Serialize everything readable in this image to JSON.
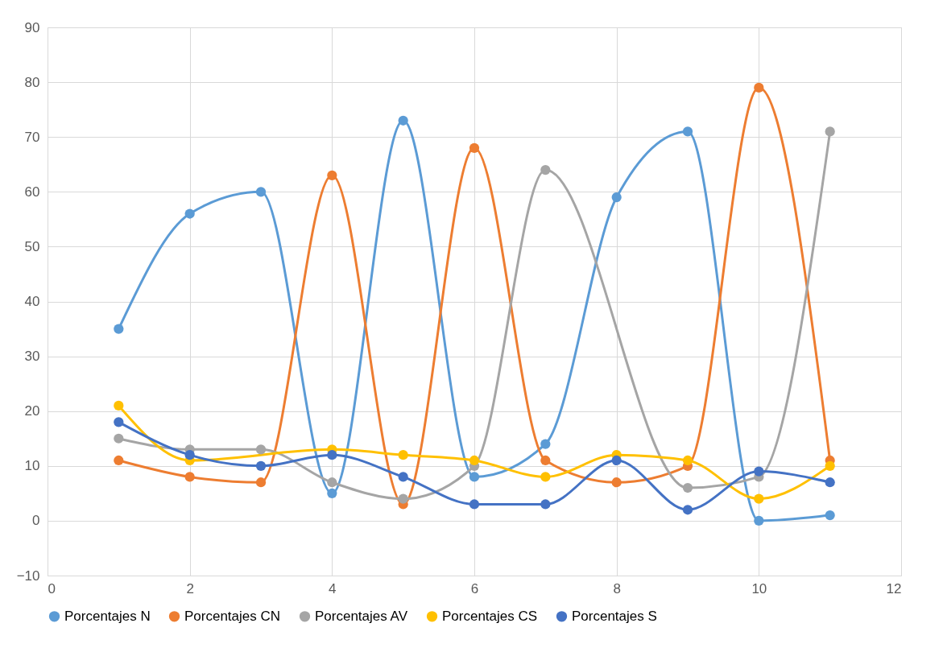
{
  "chart_data": {
    "type": "line",
    "x": [
      1,
      2,
      3,
      4,
      5,
      6,
      7,
      8,
      9,
      10,
      11
    ],
    "series": [
      {
        "name": "Porcentajes N",
        "color": "#5b9bd5",
        "values": [
          35,
          56,
          60,
          5,
          73,
          8,
          14,
          59,
          71,
          0,
          1
        ]
      },
      {
        "name": "Porcentajes CN",
        "color": "#ed7d31",
        "values": [
          11,
          8,
          7,
          63,
          3,
          68,
          11,
          7,
          10,
          79,
          11
        ]
      },
      {
        "name": "Porcentajes AV",
        "color": "#a5a5a5",
        "values": [
          15,
          13,
          13,
          7,
          4,
          10,
          64,
          null,
          6,
          8,
          71
        ]
      },
      {
        "name": "Porcentajes CS",
        "color": "#ffc000",
        "values": [
          21,
          11,
          null,
          13,
          12,
          11,
          8,
          12,
          11,
          4,
          10
        ]
      },
      {
        "name": "Porcentajes S",
        "color": "#4472c4",
        "values": [
          18,
          12,
          10,
          12,
          8,
          3,
          3,
          11,
          2,
          9,
          7
        ]
      }
    ],
    "xlim": [
      0,
      12
    ],
    "xticks": [
      0,
      2,
      4,
      6,
      8,
      10,
      12
    ],
    "ylim": [
      -10,
      90
    ],
    "yticks": [
      -10,
      0,
      10,
      20,
      30,
      40,
      50,
      60,
      70,
      80,
      90
    ],
    "grid": true,
    "legend": "bottom",
    "marker": "circle",
    "line_style": "solid"
  }
}
